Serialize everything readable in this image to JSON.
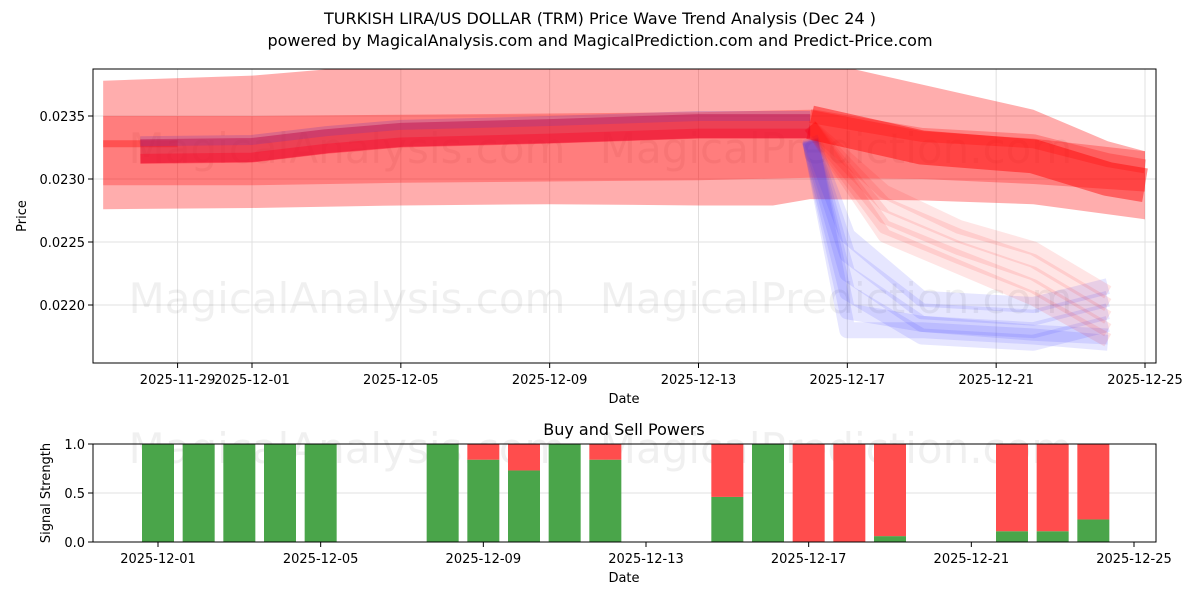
{
  "header": {
    "title": "TURKISH LIRA/US DOLLAR (TRM) Price Wave Trend Analysis (Dec 24 )",
    "subtitle": "powered by MagicalAnalysis.com and MagicalPrediction.com and Predict-Price.com"
  },
  "watermarks": [
    "MagicalAnalysis.com",
    "MagicalPrediction.com"
  ],
  "colors": {
    "band_outer": "#ff0000",
    "band_forecast_blue": "#3333ff",
    "buy": "#4aa54a",
    "sell": "#ff4d4d",
    "grid": "#e0e0e0"
  },
  "chart_data": [
    {
      "type": "area",
      "title": "",
      "xlabel": "Date",
      "ylabel": "Price",
      "ylim": [
        0.02155,
        0.02388
      ],
      "yticks": [
        "0.0220",
        "0.0225",
        "0.0230",
        "0.0235"
      ],
      "xticks": [
        "2025-11-29",
        "2025-12-01",
        "2025-12-05",
        "2025-12-09",
        "2025-12-13",
        "2025-12-17",
        "2025-12-21",
        "2025-12-25"
      ],
      "grid": true,
      "series": [
        {
          "name": "outer-band",
          "x": [
            "2025-11-27",
            "2025-12-01",
            "2025-12-05",
            "2025-12-09",
            "2025-12-13",
            "2025-12-15",
            "2025-12-16",
            "2025-12-19",
            "2025-12-22",
            "2025-12-24",
            "2025-12-25"
          ],
          "upper": [
            0.02378,
            0.02382,
            0.02392,
            0.02395,
            0.02395,
            0.02395,
            0.02395,
            0.02375,
            0.02355,
            0.0233,
            0.02322
          ],
          "lower": [
            0.02276,
            0.02277,
            0.02279,
            0.0228,
            0.02279,
            0.02279,
            0.02284,
            0.02283,
            0.0228,
            0.02272,
            0.02268
          ]
        },
        {
          "name": "inner-band",
          "x": [
            "2025-11-27",
            "2025-12-01",
            "2025-12-05",
            "2025-12-09",
            "2025-12-13",
            "2025-12-16",
            "2025-12-19",
            "2025-12-22",
            "2025-12-25"
          ],
          "upper": [
            0.0235,
            0.0235,
            0.02351,
            0.02352,
            0.02353,
            0.02355,
            0.02338,
            0.02332,
            0.02322
          ],
          "lower": [
            0.02295,
            0.02295,
            0.02297,
            0.02298,
            0.02299,
            0.02301,
            0.023,
            0.02296,
            0.0229
          ]
        },
        {
          "name": "price-wave-core",
          "x": [
            "2025-11-28",
            "2025-12-01",
            "2025-12-03",
            "2025-12-05",
            "2025-12-09",
            "2025-12-13",
            "2025-12-16"
          ],
          "values": [
            0.02322,
            0.02323,
            0.0233,
            0.02335,
            0.02338,
            0.02342,
            0.02342
          ]
        },
        {
          "name": "forecast-red-paths",
          "x": [
            "2025-12-16",
            "2025-12-19",
            "2025-12-22",
            "2025-12-24"
          ],
          "values": [
            0.0234,
            0.02262,
            0.0224,
            0.02205
          ]
        },
        {
          "name": "forecast-blue-paths",
          "x": [
            "2025-12-16",
            "2025-12-17",
            "2025-12-19",
            "2025-12-22",
            "2025-12-24"
          ],
          "values": [
            0.0233,
            0.0223,
            0.02195,
            0.02185,
            0.02195
          ]
        }
      ]
    },
    {
      "type": "bar",
      "title": "Buy and Sell Powers",
      "xlabel": "Date",
      "ylabel": "Signal Strength",
      "ylim": [
        0,
        1
      ],
      "yticks": [
        "0.0",
        "0.5",
        "1.0"
      ],
      "xticks": [
        "2025-12-01",
        "2025-12-05",
        "2025-12-09",
        "2025-12-13",
        "2025-12-17",
        "2025-12-21",
        "2025-12-25"
      ],
      "grid": true,
      "categories": [
        "2025-12-01",
        "2025-12-02",
        "2025-12-03",
        "2025-12-04",
        "2025-12-05",
        "2025-12-08",
        "2025-12-09",
        "2025-12-10",
        "2025-12-11",
        "2025-12-12",
        "2025-12-15",
        "2025-12-16",
        "2025-12-17",
        "2025-12-18",
        "2025-12-19",
        "2025-12-22",
        "2025-12-23",
        "2025-12-24"
      ],
      "series": [
        {
          "name": "Buy",
          "color": "#4aa54a",
          "values": [
            1.0,
            1.0,
            1.0,
            1.0,
            1.0,
            1.0,
            0.84,
            0.73,
            1.0,
            0.84,
            0.46,
            1.0,
            0.0,
            0.0,
            0.06,
            0.11,
            0.11,
            0.23
          ]
        },
        {
          "name": "Sell",
          "color": "#ff4d4d",
          "values": [
            0.0,
            0.0,
            0.0,
            0.0,
            0.0,
            0.0,
            0.16,
            0.27,
            0.0,
            0.16,
            0.54,
            0.0,
            1.0,
            1.0,
            0.94,
            0.89,
            0.89,
            0.77
          ]
        }
      ]
    }
  ]
}
